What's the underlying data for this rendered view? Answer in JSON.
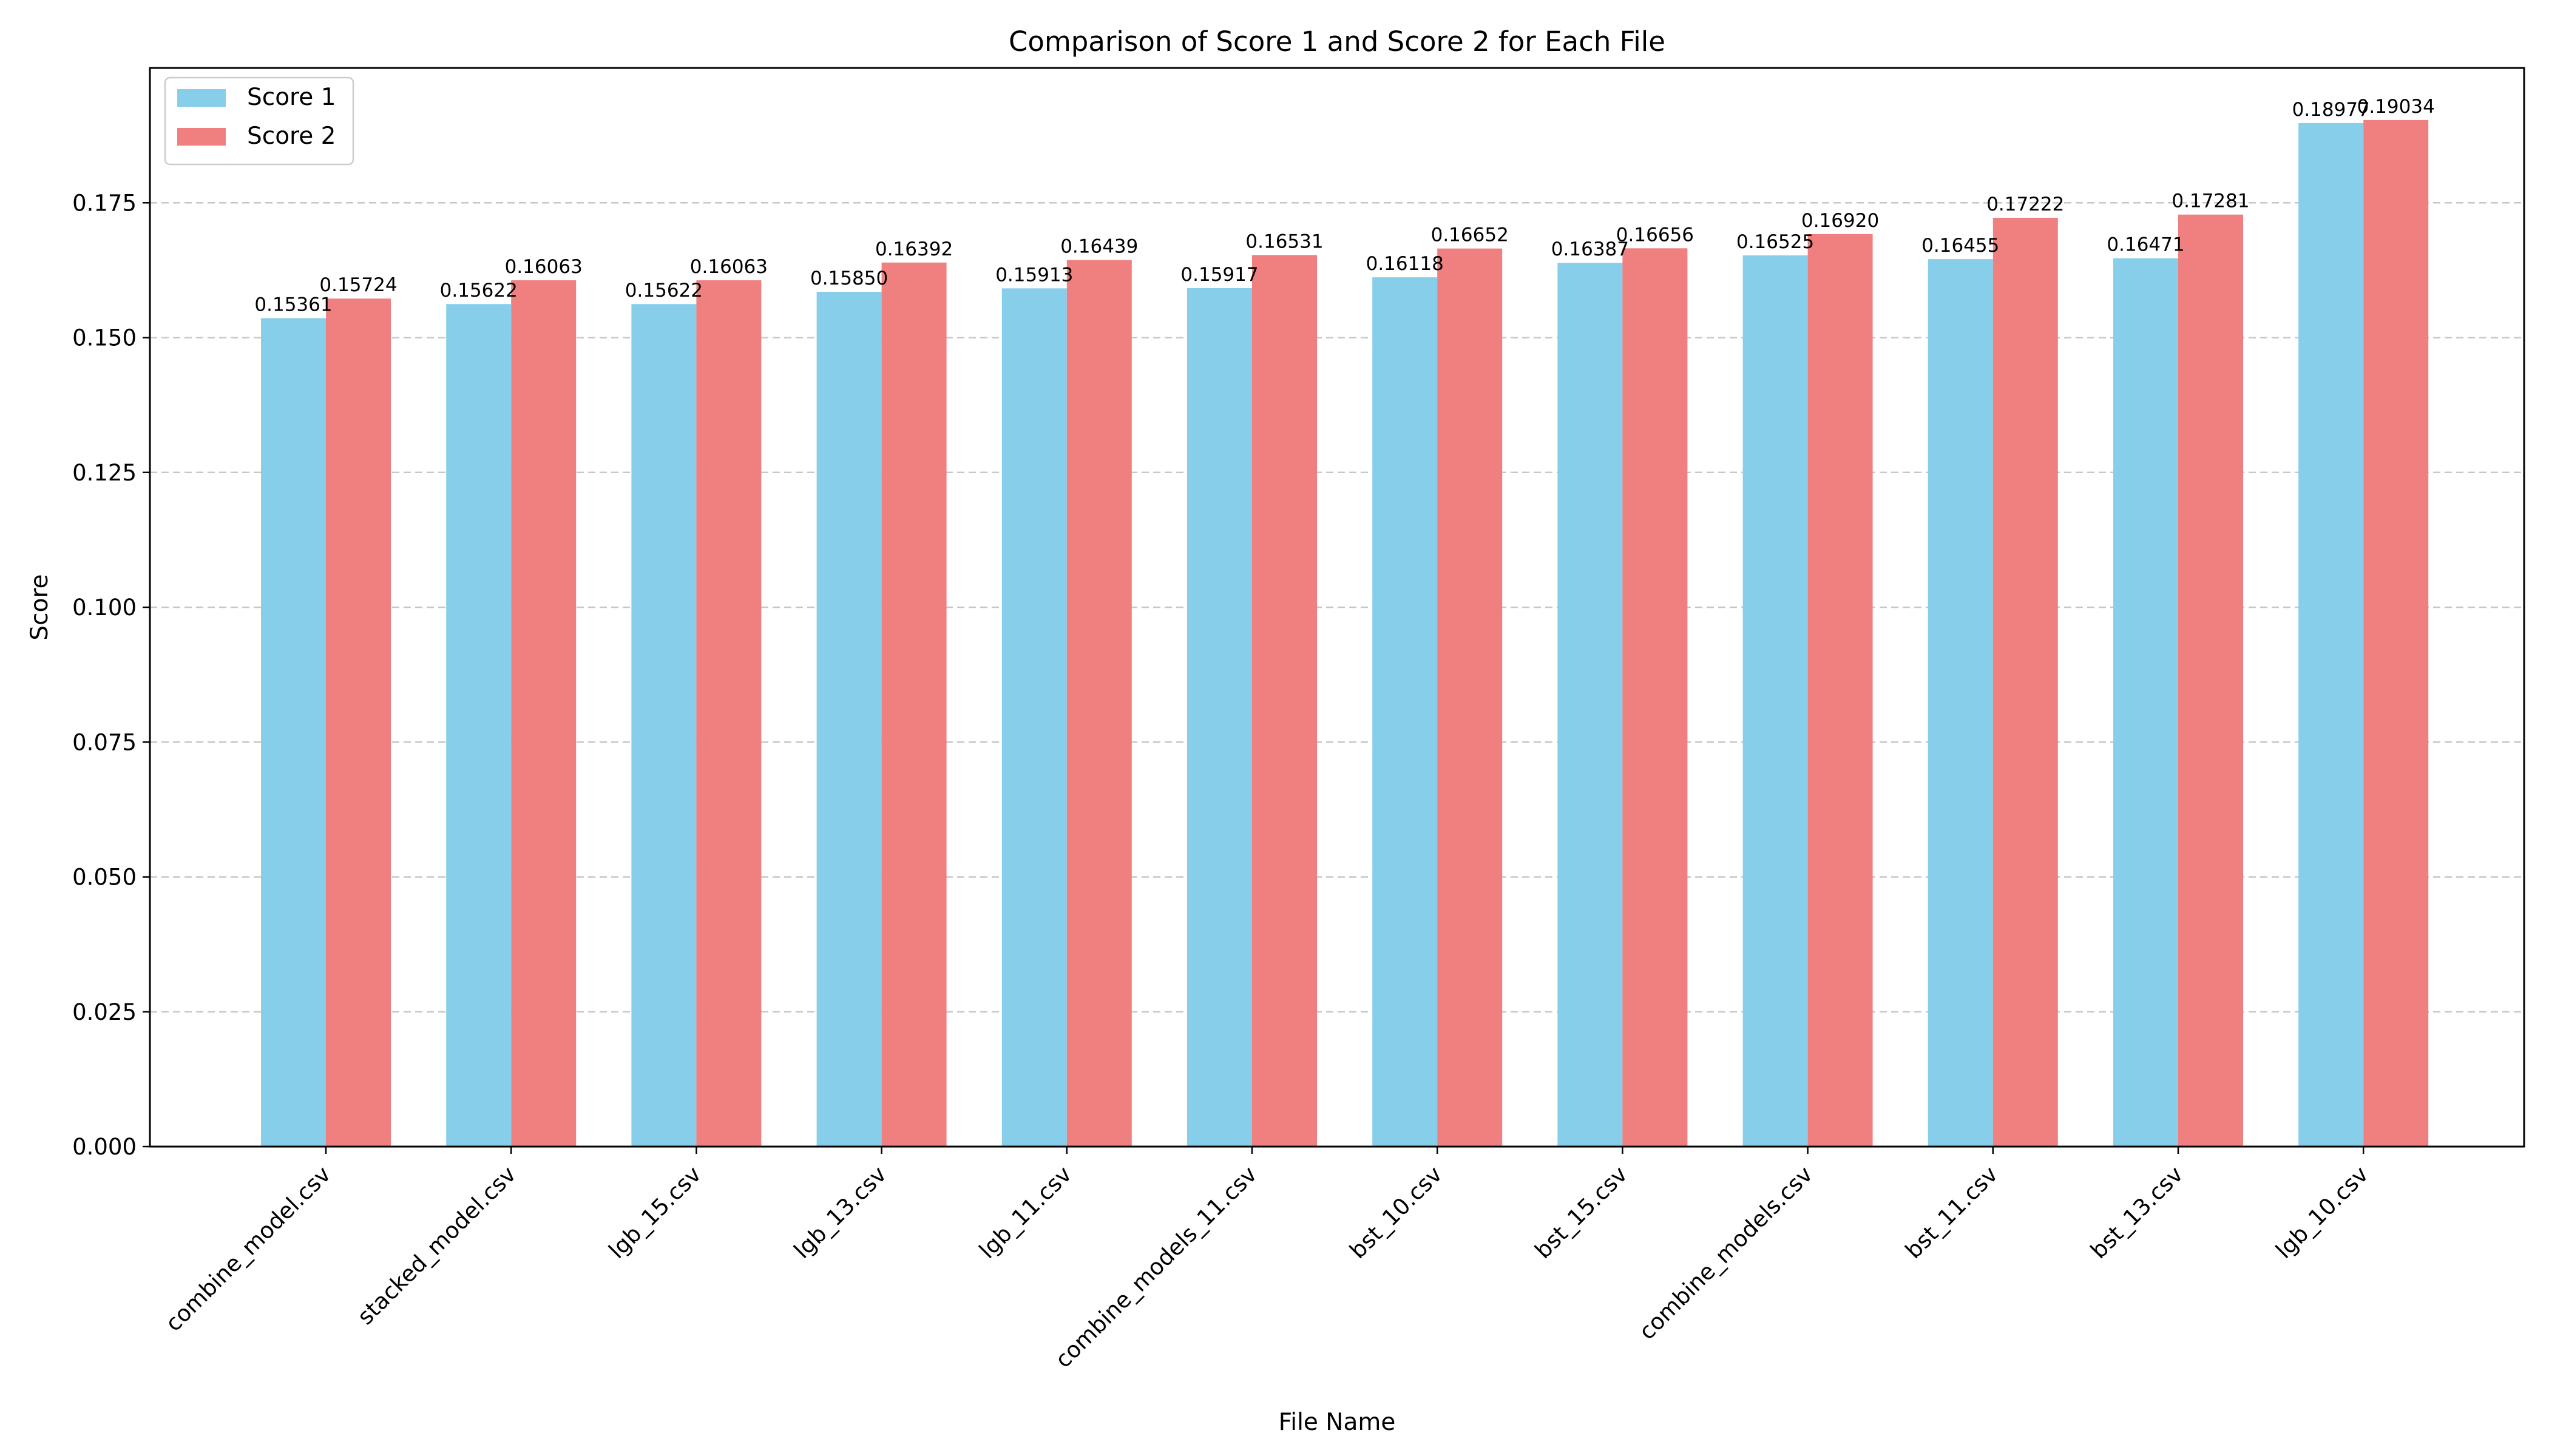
{
  "chart_data": {
    "type": "bar",
    "title": "Comparison of Score 1 and Score 2 for Each File",
    "xlabel": "File Name",
    "ylabel": "Score",
    "categories": [
      "combine_model.csv",
      "stacked_model.csv",
      "lgb_15.csv",
      "lgb_13.csv",
      "lgb_11.csv",
      "combine_models_11.csv",
      "bst_10.csv",
      "bst_15.csv",
      "combine_models.csv",
      "bst_11.csv",
      "bst_13.csv",
      "lgb_10.csv"
    ],
    "series": [
      {
        "name": "Score 1",
        "color": "#87CEEB",
        "values": [
          0.15361,
          0.15622,
          0.15622,
          0.1585,
          0.15913,
          0.15917,
          0.16118,
          0.16387,
          0.16525,
          0.16455,
          0.16471,
          0.18977
        ],
        "labels": [
          "0.15361",
          "0.15622",
          "0.15622",
          "0.15850",
          "0.15913",
          "0.15917",
          "0.16118",
          "0.16387",
          "0.16525",
          "0.16455",
          "0.16471",
          "0.18977"
        ]
      },
      {
        "name": "Score 2",
        "color": "#F08080",
        "values": [
          0.15724,
          0.16063,
          0.16063,
          0.16392,
          0.16439,
          0.16531,
          0.16652,
          0.16656,
          0.1692,
          0.17222,
          0.17281,
          0.19034
        ],
        "labels": [
          "0.15724",
          "0.16063",
          "0.16063",
          "0.16392",
          "0.16439",
          "0.16531",
          "0.16652",
          "0.16656",
          "0.16920",
          "0.17222",
          "0.17281",
          "0.19034"
        ]
      }
    ],
    "ylim": [
      0,
      0.2
    ],
    "yticks": [
      "0.000",
      "0.025",
      "0.050",
      "0.075",
      "0.100",
      "0.125",
      "0.150",
      "0.175"
    ],
    "grid": "y-dashed",
    "legend_position": "top-left",
    "xtick_rotation": "45"
  }
}
